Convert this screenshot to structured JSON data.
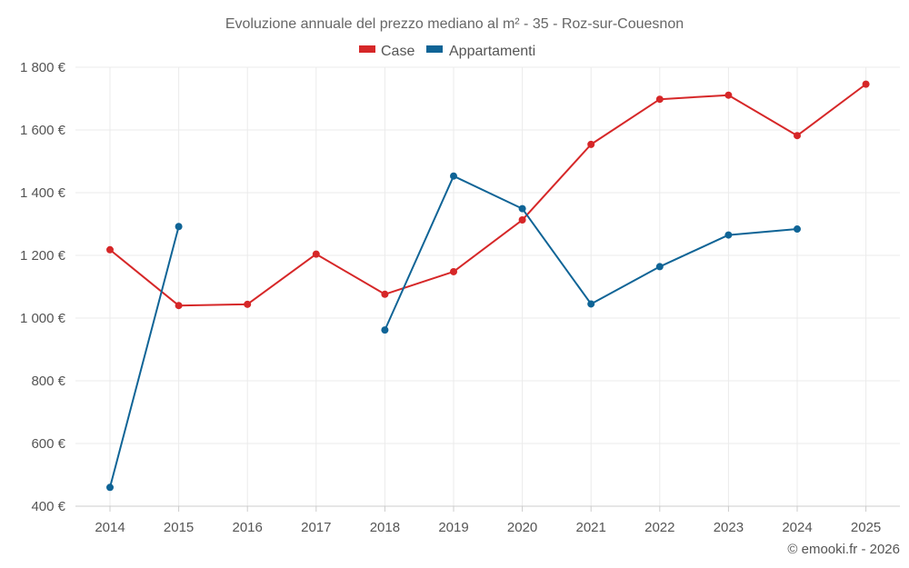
{
  "colors": {
    "case": "#d62728",
    "appartamenti": "#0f6496"
  },
  "credit": "© emooki.fr - 2026",
  "chart_data": {
    "type": "line",
    "title": "Evoluzione annuale del prezzo mediano al m² - 35 - Roz-sur-Couesnon",
    "x": [
      2014,
      2015,
      2016,
      2017,
      2018,
      2019,
      2020,
      2021,
      2022,
      2023,
      2024,
      2025
    ],
    "x_tick_labels": [
      "2014",
      "2015",
      "2016",
      "2017",
      "2018",
      "2019",
      "2020",
      "2021",
      "2022",
      "2023",
      "2024",
      "2025"
    ],
    "y_ticks": [
      400,
      600,
      800,
      1000,
      1200,
      1400,
      1600,
      1800
    ],
    "y_tick_labels": [
      "400 €",
      "600 €",
      "800 €",
      "1 000 €",
      "1 200 €",
      "1 400 €",
      "1 600 €",
      "1 800 €"
    ],
    "ylim": [
      400,
      1800
    ],
    "grid": true,
    "legend_position": "top-center",
    "series": [
      {
        "name": "Case",
        "color_key": "case",
        "values": [
          1218,
          1040,
          1044,
          1204,
          1076,
          1148,
          1313,
          1554,
          1698,
          1711,
          1582,
          1746
        ]
      },
      {
        "name": "Appartamenti",
        "color_key": "appartamenti",
        "values": [
          460,
          1292,
          null,
          null,
          962,
          1453,
          1349,
          1045,
          1164,
          1265,
          1284,
          null
        ]
      }
    ]
  }
}
